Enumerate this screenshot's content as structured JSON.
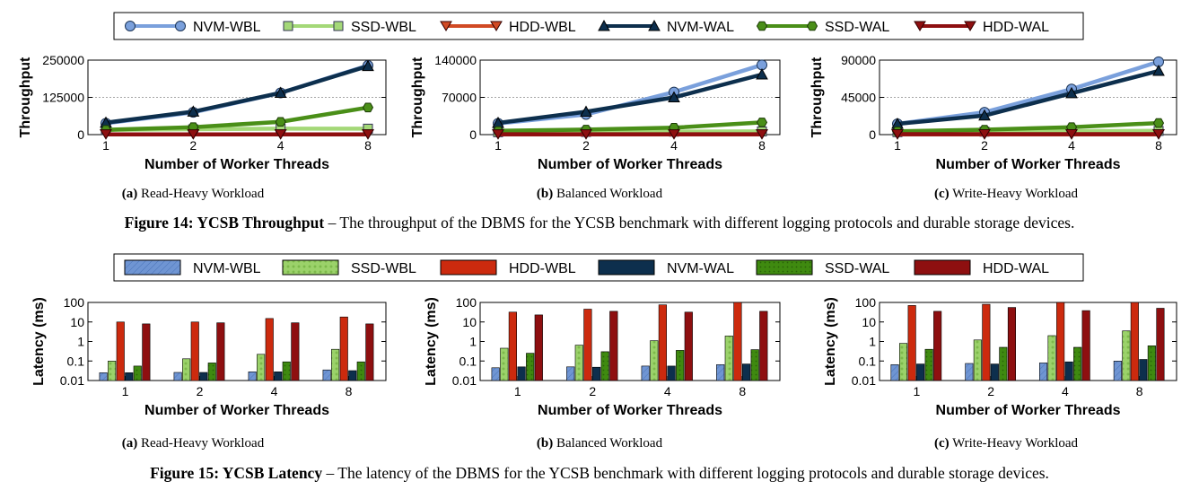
{
  "colors": {
    "NVM-WBL": "#6f95d3",
    "SSD-WBL": "#9bd26a",
    "HDD-WBL": "#cc2a0e",
    "NVM-WAL": "#0d2f4d",
    "SSD-WAL": "#3f8a10",
    "HDD-WAL": "#8e0f10"
  },
  "legend": {
    "series": [
      "NVM-WBL",
      "SSD-WBL",
      "HDD-WBL",
      "NVM-WAL",
      "SSD-WAL",
      "HDD-WAL"
    ]
  },
  "captions": {
    "fig14_label": "Figure 14: YCSB Throughput",
    "fig14_text": " – The throughput of the DBMS for the YCSB benchmark with different logging protocols and durable storage devices.",
    "fig15_label": "Figure 15: YCSB Latency",
    "fig15_text": " – The latency of the DBMS for the YCSB benchmark with different logging protocols and durable storage devices."
  },
  "subcaptions": [
    {
      "tag": "(a)",
      "text": " Read-Heavy Workload"
    },
    {
      "tag": "(b)",
      "text": " Balanced Workload"
    },
    {
      "tag": "(c)",
      "text": " Write-Heavy Workload"
    }
  ],
  "chart_data": [
    {
      "type": "line",
      "title": "(a) Read-Heavy Workload",
      "xlabel": "Number of Worker Threads",
      "ylabel": "Throughput",
      "categories": [
        "1",
        "2",
        "4",
        "8"
      ],
      "ylim": [
        0,
        250000
      ],
      "yticks": [
        "0",
        "125000",
        "250000"
      ],
      "grid": true,
      "series": [
        {
          "name": "NVM-WBL",
          "values": [
            38000,
            75000,
            140000,
            232000
          ]
        },
        {
          "name": "SSD-WBL",
          "values": [
            16000,
            18000,
            20000,
            20000
          ]
        },
        {
          "name": "HDD-WBL",
          "values": [
            900,
            900,
            900,
            900
          ]
        },
        {
          "name": "NVM-WAL",
          "values": [
            40000,
            77000,
            140000,
            230000
          ]
        },
        {
          "name": "SSD-WAL",
          "values": [
            16000,
            25000,
            43000,
            91000
          ]
        },
        {
          "name": "HDD-WAL",
          "values": [
            1000,
            1000,
            1000,
            1000
          ]
        }
      ]
    },
    {
      "type": "line",
      "title": "(b) Balanced Workload",
      "xlabel": "Number of Worker Threads",
      "ylabel": "Throughput",
      "categories": [
        "1",
        "2",
        "4",
        "8"
      ],
      "ylim": [
        0,
        140000
      ],
      "yticks": [
        "0",
        "70000",
        "140000"
      ],
      "grid": true,
      "series": [
        {
          "name": "NVM-WBL",
          "values": [
            21000,
            38000,
            80000,
            131000
          ]
        },
        {
          "name": "SSD-WBL",
          "values": [
            4500,
            5000,
            5500,
            6000
          ]
        },
        {
          "name": "HDD-WBL",
          "values": [
            500,
            500,
            500,
            500
          ]
        },
        {
          "name": "NVM-WAL",
          "values": [
            22000,
            43000,
            70000,
            113000
          ]
        },
        {
          "name": "SSD-WAL",
          "values": [
            7000,
            9500,
            13000,
            23000
          ]
        },
        {
          "name": "HDD-WAL",
          "values": [
            700,
            700,
            700,
            700
          ]
        }
      ]
    },
    {
      "type": "line",
      "title": "(c) Write-Heavy Workload",
      "xlabel": "Number of Worker Threads",
      "ylabel": "Throughput",
      "categories": [
        "1",
        "2",
        "4",
        "8"
      ],
      "ylim": [
        0,
        90000
      ],
      "yticks": [
        "0",
        "45000",
        "90000"
      ],
      "grid": true,
      "series": [
        {
          "name": "NVM-WBL",
          "values": [
            13000,
            27000,
            55000,
            88000
          ]
        },
        {
          "name": "SSD-WBL",
          "values": [
            3000,
            3500,
            4000,
            4500
          ]
        },
        {
          "name": "HDD-WBL",
          "values": [
            300,
            300,
            300,
            300
          ]
        },
        {
          "name": "NVM-WAL",
          "values": [
            13000,
            23000,
            50000,
            77000
          ]
        },
        {
          "name": "SSD-WAL",
          "values": [
            4000,
            6000,
            9000,
            14000
          ]
        },
        {
          "name": "HDD-WAL",
          "values": [
            500,
            500,
            500,
            500
          ]
        }
      ]
    },
    {
      "type": "bar",
      "title": "(a) Read-Heavy Workload",
      "xlabel": "Number of Worker Threads",
      "ylabel": "Latency (ms)",
      "categories": [
        "1",
        "2",
        "4",
        "8"
      ],
      "yscale": "log",
      "ylim": [
        0.01,
        100
      ],
      "yticks": [
        "0.01",
        "0.1",
        "1",
        "10",
        "100"
      ],
      "series": [
        {
          "name": "NVM-WBL",
          "values": [
            0.025,
            0.026,
            0.028,
            0.035
          ]
        },
        {
          "name": "SSD-WBL",
          "values": [
            0.1,
            0.13,
            0.22,
            0.4
          ]
        },
        {
          "name": "HDD-WBL",
          "values": [
            10,
            10,
            15,
            18
          ]
        },
        {
          "name": "NVM-WAL",
          "values": [
            0.025,
            0.026,
            0.028,
            0.032
          ]
        },
        {
          "name": "SSD-WAL",
          "values": [
            0.055,
            0.08,
            0.09,
            0.09
          ]
        },
        {
          "name": "HDD-WAL",
          "values": [
            8,
            9,
            9,
            8
          ]
        }
      ]
    },
    {
      "type": "bar",
      "title": "(b) Balanced Workload",
      "xlabel": "Number of Worker Threads",
      "ylabel": "Latency (ms)",
      "categories": [
        "1",
        "2",
        "4",
        "8"
      ],
      "yscale": "log",
      "ylim": [
        0.01,
        100
      ],
      "yticks": [
        "0.01",
        "0.1",
        "1",
        "10",
        "100"
      ],
      "series": [
        {
          "name": "NVM-WBL",
          "values": [
            0.045,
            0.05,
            0.055,
            0.065
          ]
        },
        {
          "name": "SSD-WBL",
          "values": [
            0.45,
            0.65,
            1.1,
            1.9
          ]
        },
        {
          "name": "HDD-WBL",
          "values": [
            32,
            45,
            75,
            100
          ]
        },
        {
          "name": "NVM-WAL",
          "values": [
            0.05,
            0.048,
            0.055,
            0.07
          ]
        },
        {
          "name": "SSD-WAL",
          "values": [
            0.25,
            0.3,
            0.35,
            0.38
          ]
        },
        {
          "name": "HDD-WAL",
          "values": [
            23,
            35,
            32,
            35
          ]
        }
      ]
    },
    {
      "type": "bar",
      "title": "(c) Write-Heavy Workload",
      "xlabel": "Number of Worker Threads",
      "ylabel": "Latency (ms)",
      "categories": [
        "1",
        "2",
        "4",
        "8"
      ],
      "yscale": "log",
      "ylim": [
        0.01,
        100
      ],
      "yticks": [
        "0.01",
        "0.1",
        "1",
        "10",
        "100"
      ],
      "series": [
        {
          "name": "NVM-WBL",
          "values": [
            0.065,
            0.075,
            0.08,
            0.1
          ]
        },
        {
          "name": "SSD-WBL",
          "values": [
            0.8,
            1.2,
            2,
            3.5
          ]
        },
        {
          "name": "HDD-WBL",
          "values": [
            70,
            80,
            100,
            100
          ]
        },
        {
          "name": "NVM-WAL",
          "values": [
            0.07,
            0.07,
            0.09,
            0.12
          ]
        },
        {
          "name": "SSD-WAL",
          "values": [
            0.4,
            0.5,
            0.5,
            0.6
          ]
        },
        {
          "name": "HDD-WAL",
          "values": [
            35,
            55,
            38,
            50
          ]
        }
      ]
    }
  ]
}
